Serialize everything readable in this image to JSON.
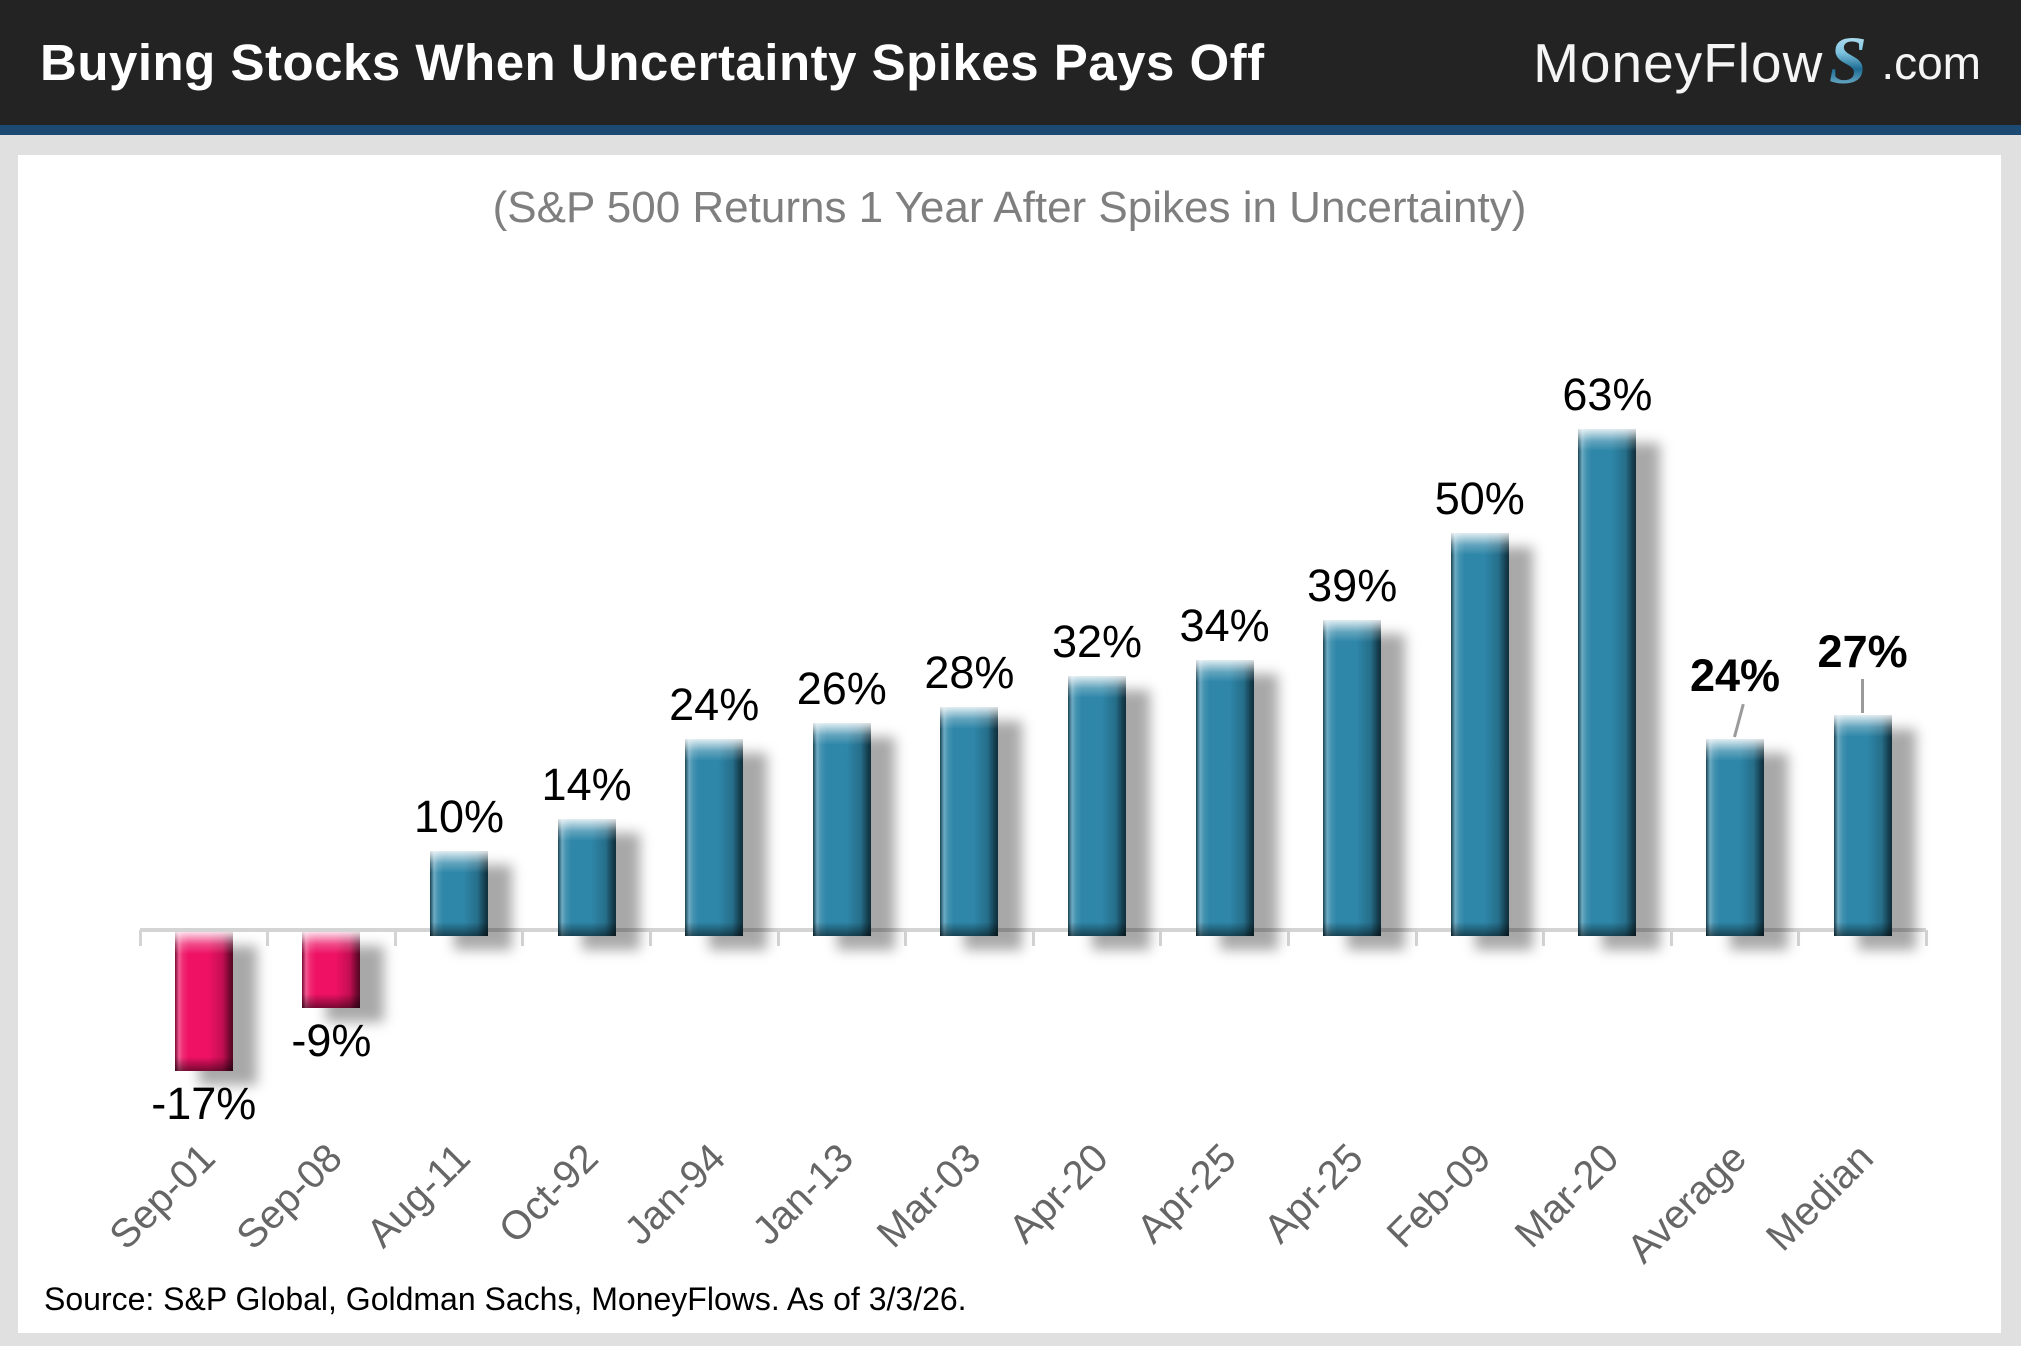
{
  "header": {
    "title": "Buying Stocks When Uncertainty Spikes Pays Off",
    "logo": {
      "part1": "MoneyFlow",
      "s": "S",
      "part2": ".com"
    }
  },
  "chart_data": {
    "type": "bar",
    "subtitle": "(S&P 500 Returns 1 Year After Spikes in Uncertainty)",
    "categories": [
      "Sep-01",
      "Sep-08",
      "Aug-11",
      "Oct-92",
      "Jan-94",
      "Jan-13",
      "Mar-03",
      "Apr-20",
      "Apr-25",
      "Apr-25",
      "Feb-09",
      "Mar-20",
      "Average",
      "Median"
    ],
    "values": [
      -17,
      -9,
      10,
      14,
      24,
      26,
      28,
      32,
      34,
      39,
      50,
      63,
      24,
      27
    ],
    "value_labels": [
      "-17%",
      "-9%",
      "10%",
      "14%",
      "24%",
      "26%",
      "28%",
      "32%",
      "34%",
      "39%",
      "50%",
      "63%",
      "24%",
      "27%"
    ],
    "emphasized_indexes": [
      12,
      13
    ],
    "leader_line_indexes": [
      12,
      13
    ],
    "positive_color": "#2e86a8",
    "negative_color": "#ee1164",
    "axis_color": "#d4d4d4",
    "xlabel": "",
    "ylabel": "",
    "ylim": [
      -20,
      70
    ],
    "grid": false,
    "legend": "none",
    "bar_style": "3d-bevel-with-shadow"
  },
  "source": {
    "text": "Source: S&P Global, Goldman Sachs, MoneyFlows. As of 3/3/26."
  },
  "colors": {
    "header_bg": "#232323",
    "accent_stripe": "#1c4a72",
    "page_bg": "#e0e0e0",
    "panel_bg": "#ffffff",
    "subtitle_text": "#7f7f7f",
    "xlabel_text": "#666666",
    "logo_s_gradient_top": "#d9f1fb",
    "logo_s_gradient_bottom": "#1e6d94"
  }
}
